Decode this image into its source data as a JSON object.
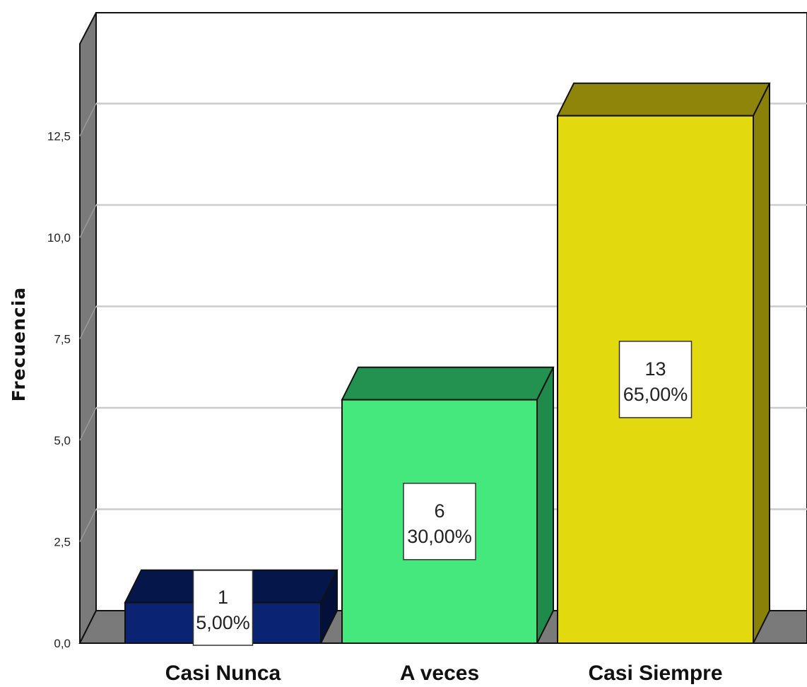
{
  "chart_data": {
    "type": "bar",
    "categories": [
      "Casi Nunca",
      "A veces",
      "Casi Siempre"
    ],
    "values": [
      1,
      6,
      13
    ],
    "percent_labels": [
      "5,00%",
      "30,00%",
      "65,00%"
    ],
    "count_labels": [
      "1",
      "6",
      "13"
    ],
    "title": "",
    "xlabel": "",
    "ylabel": "Frecuencia",
    "ylim": [
      0,
      15
    ],
    "yticks": [
      0,
      2.5,
      5,
      7.5,
      10,
      12.5
    ],
    "ytick_labels": [
      "0,0",
      "2,5",
      "5,0",
      "7,5",
      "10,0",
      "12,5"
    ],
    "grid": true,
    "legend": "none",
    "style": "3d",
    "colors": {
      "bars": [
        {
          "front": "#0a2473",
          "top": "#04164a",
          "side": "#03103a"
        },
        {
          "front": "#45e87c",
          "top": "#239150",
          "side": "#1f8a4a"
        },
        {
          "front": "#e3d90f",
          "top": "#8e850a",
          "side": "#8a8108"
        }
      ],
      "wall": "#7a7a7a",
      "grid": "#cccccc"
    }
  }
}
